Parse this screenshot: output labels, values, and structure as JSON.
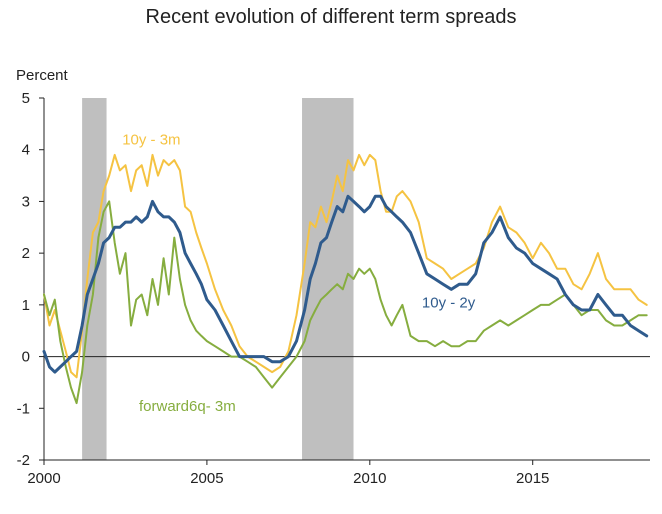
{
  "chart_data": {
    "type": "line",
    "title": "Recent evolution of different term spreads",
    "ylabel": "Percent",
    "xlabel": "",
    "xlim": [
      2000,
      2018.6
    ],
    "ylim": [
      -2,
      5
    ],
    "yticks": [
      -2,
      -1,
      0,
      1,
      2,
      3,
      4,
      5
    ],
    "xticks": [
      2000,
      2005,
      2010,
      2015
    ],
    "recessions": [
      [
        2001.17,
        2001.92
      ],
      [
        2007.92,
        2009.5
      ]
    ],
    "zero_line": true,
    "grid": false,
    "series": [
      {
        "name": "10y - 3m",
        "color": "#f5c342",
        "x": [
          2000.0,
          2000.17,
          2000.33,
          2000.5,
          2000.67,
          2000.83,
          2001.0,
          2001.17,
          2001.33,
          2001.5,
          2001.67,
          2001.83,
          2002.0,
          2002.17,
          2002.33,
          2002.5,
          2002.67,
          2002.83,
          2003.0,
          2003.17,
          2003.33,
          2003.5,
          2003.67,
          2003.83,
          2004.0,
          2004.17,
          2004.33,
          2004.5,
          2004.67,
          2004.83,
          2005.0,
          2005.25,
          2005.5,
          2005.75,
          2006.0,
          2006.25,
          2006.5,
          2006.75,
          2007.0,
          2007.25,
          2007.5,
          2007.75,
          2008.0,
          2008.17,
          2008.33,
          2008.5,
          2008.67,
          2008.83,
          2009.0,
          2009.17,
          2009.33,
          2009.5,
          2009.67,
          2009.83,
          2010.0,
          2010.17,
          2010.33,
          2010.5,
          2010.67,
          2010.83,
          2011.0,
          2011.25,
          2011.5,
          2011.75,
          2012.0,
          2012.25,
          2012.5,
          2012.75,
          2013.0,
          2013.25,
          2013.5,
          2013.75,
          2014.0,
          2014.25,
          2014.5,
          2014.75,
          2015.0,
          2015.25,
          2015.5,
          2015.75,
          2016.0,
          2016.25,
          2016.5,
          2016.75,
          2017.0,
          2017.25,
          2017.5,
          2017.75,
          2018.0,
          2018.25,
          2018.5
        ],
        "values": [
          1.2,
          0.6,
          0.9,
          0.5,
          0.1,
          -0.3,
          -0.4,
          0.5,
          1.5,
          2.4,
          2.6,
          3.2,
          3.5,
          3.9,
          3.6,
          3.7,
          3.2,
          3.6,
          3.7,
          3.3,
          3.9,
          3.5,
          3.8,
          3.7,
          3.8,
          3.6,
          2.9,
          2.8,
          2.4,
          2.1,
          1.8,
          1.3,
          0.9,
          0.6,
          0.2,
          0.0,
          -0.1,
          -0.2,
          -0.3,
          -0.2,
          0.1,
          0.8,
          1.8,
          2.6,
          2.5,
          2.9,
          2.6,
          3.0,
          3.5,
          3.2,
          3.8,
          3.6,
          3.9,
          3.7,
          3.9,
          3.8,
          3.2,
          2.8,
          2.8,
          3.1,
          3.2,
          3.0,
          2.6,
          1.9,
          1.8,
          1.7,
          1.5,
          1.6,
          1.7,
          1.8,
          2.1,
          2.6,
          2.9,
          2.5,
          2.4,
          2.2,
          1.9,
          2.2,
          2.0,
          1.7,
          1.7,
          1.4,
          1.3,
          1.6,
          2.0,
          1.5,
          1.3,
          1.3,
          1.3,
          1.1,
          1.0
        ]
      },
      {
        "name": "10y - 2y",
        "color": "#2f5b8d",
        "x": [
          2000.0,
          2000.17,
          2000.33,
          2000.5,
          2000.67,
          2000.83,
          2001.0,
          2001.17,
          2001.33,
          2001.5,
          2001.67,
          2001.83,
          2002.0,
          2002.17,
          2002.33,
          2002.5,
          2002.67,
          2002.83,
          2003.0,
          2003.17,
          2003.33,
          2003.5,
          2003.67,
          2003.83,
          2004.0,
          2004.17,
          2004.33,
          2004.5,
          2004.67,
          2004.83,
          2005.0,
          2005.25,
          2005.5,
          2005.75,
          2006.0,
          2006.25,
          2006.5,
          2006.75,
          2007.0,
          2007.25,
          2007.5,
          2007.75,
          2008.0,
          2008.17,
          2008.33,
          2008.5,
          2008.67,
          2008.83,
          2009.0,
          2009.17,
          2009.33,
          2009.5,
          2009.67,
          2009.83,
          2010.0,
          2010.17,
          2010.33,
          2010.5,
          2010.67,
          2010.83,
          2011.0,
          2011.25,
          2011.5,
          2011.75,
          2012.0,
          2012.25,
          2012.5,
          2012.75,
          2013.0,
          2013.25,
          2013.5,
          2013.75,
          2014.0,
          2014.25,
          2014.5,
          2014.75,
          2015.0,
          2015.25,
          2015.5,
          2015.75,
          2016.0,
          2016.25,
          2016.5,
          2016.75,
          2017.0,
          2017.25,
          2017.5,
          2017.75,
          2018.0,
          2018.25,
          2018.5
        ],
        "values": [
          0.1,
          -0.2,
          -0.3,
          -0.2,
          -0.1,
          0.0,
          0.1,
          0.6,
          1.2,
          1.5,
          1.8,
          2.2,
          2.3,
          2.5,
          2.5,
          2.6,
          2.6,
          2.7,
          2.6,
          2.7,
          3.0,
          2.8,
          2.7,
          2.7,
          2.6,
          2.4,
          2.0,
          1.8,
          1.6,
          1.4,
          1.1,
          0.9,
          0.6,
          0.3,
          0.0,
          0.0,
          0.0,
          0.0,
          -0.1,
          -0.1,
          0.0,
          0.3,
          0.9,
          1.5,
          1.8,
          2.2,
          2.3,
          2.6,
          2.9,
          2.8,
          3.1,
          3.0,
          2.9,
          2.8,
          2.9,
          3.1,
          3.1,
          2.9,
          2.8,
          2.7,
          2.6,
          2.4,
          2.0,
          1.6,
          1.5,
          1.4,
          1.3,
          1.4,
          1.4,
          1.6,
          2.2,
          2.4,
          2.7,
          2.3,
          2.1,
          2.0,
          1.8,
          1.7,
          1.6,
          1.5,
          1.2,
          1.0,
          0.9,
          0.9,
          1.2,
          1.0,
          0.8,
          0.8,
          0.6,
          0.5,
          0.4
        ]
      },
      {
        "name": "forward6q- 3m",
        "color": "#86ad3f",
        "x": [
          2000.0,
          2000.17,
          2000.33,
          2000.5,
          2000.67,
          2000.83,
          2001.0,
          2001.17,
          2001.33,
          2001.5,
          2001.67,
          2001.83,
          2002.0,
          2002.17,
          2002.33,
          2002.5,
          2002.67,
          2002.83,
          2003.0,
          2003.17,
          2003.33,
          2003.5,
          2003.67,
          2003.83,
          2004.0,
          2004.17,
          2004.33,
          2004.5,
          2004.67,
          2004.83,
          2005.0,
          2005.25,
          2005.5,
          2005.75,
          2006.0,
          2006.25,
          2006.5,
          2006.75,
          2007.0,
          2007.25,
          2007.5,
          2007.75,
          2008.0,
          2008.17,
          2008.33,
          2008.5,
          2008.67,
          2008.83,
          2009.0,
          2009.17,
          2009.33,
          2009.5,
          2009.67,
          2009.83,
          2010.0,
          2010.17,
          2010.33,
          2010.5,
          2010.67,
          2010.83,
          2011.0,
          2011.25,
          2011.5,
          2011.75,
          2012.0,
          2012.25,
          2012.5,
          2012.75,
          2013.0,
          2013.25,
          2013.5,
          2013.75,
          2014.0,
          2014.25,
          2014.5,
          2014.75,
          2015.0,
          2015.25,
          2015.5,
          2015.75,
          2016.0,
          2016.25,
          2016.5,
          2016.75,
          2017.0,
          2017.25,
          2017.5,
          2017.75,
          2018.0,
          2018.25,
          2018.5
        ],
        "values": [
          1.2,
          0.8,
          1.1,
          0.3,
          -0.2,
          -0.6,
          -0.9,
          -0.3,
          0.6,
          1.2,
          2.3,
          2.8,
          3.0,
          2.2,
          1.6,
          2.0,
          0.6,
          1.1,
          1.2,
          0.8,
          1.5,
          1.0,
          1.9,
          1.2,
          2.3,
          1.5,
          1.0,
          0.7,
          0.5,
          0.4,
          0.3,
          0.2,
          0.1,
          0.0,
          0.0,
          -0.1,
          -0.2,
          -0.4,
          -0.6,
          -0.4,
          -0.2,
          0.0,
          0.3,
          0.7,
          0.9,
          1.1,
          1.2,
          1.3,
          1.4,
          1.3,
          1.6,
          1.5,
          1.7,
          1.6,
          1.7,
          1.5,
          1.1,
          0.8,
          0.6,
          0.8,
          1.0,
          0.4,
          0.3,
          0.3,
          0.2,
          0.3,
          0.2,
          0.2,
          0.3,
          0.3,
          0.5,
          0.6,
          0.7,
          0.6,
          0.7,
          0.8,
          0.9,
          1.0,
          1.0,
          1.1,
          1.2,
          1.0,
          0.8,
          0.9,
          0.9,
          0.7,
          0.6,
          0.6,
          0.7,
          0.8,
          0.8
        ]
      }
    ]
  }
}
